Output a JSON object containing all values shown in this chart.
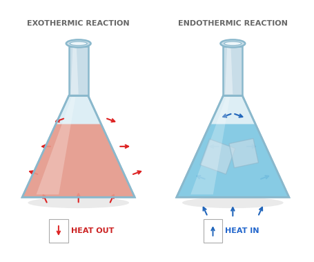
{
  "title_exo": "EXOTHERMIC REACTION",
  "title_endo": "ENDOTHERMIC REACTION",
  "label_exo": "HEAT OUT",
  "label_endo": "HEAT IN",
  "bg_color": "#ffffff",
  "exo_liquid_color": "#e8998a",
  "endo_liquid_color": "#7ec8e3",
  "glass_fill": "#ddeef5",
  "glass_edge_color": "#8ab8cc",
  "glass_neck_fill": "#c8dde8",
  "glass_highlight": "#eef6fa",
  "arrow_exo_color": "#dd2222",
  "arrow_endo_color": "#2266bb",
  "title_color": "#666666",
  "label_exo_color": "#cc2222",
  "label_endo_color": "#2266cc",
  "shadow_color": "#bbbbbb",
  "ice_fill": "#c8dde8",
  "ice_edge": "#90b8cc"
}
